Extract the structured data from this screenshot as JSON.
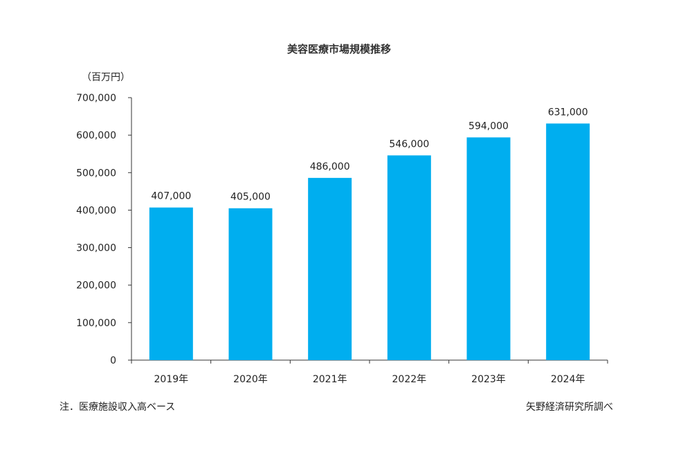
{
  "chart_data": {
    "type": "bar",
    "title": "美容医療市場規模推移",
    "ylabel": "（百万円）",
    "xlabel": "",
    "categories": [
      "2019年",
      "2020年",
      "2021年",
      "2022年",
      "2023年",
      "2024年"
    ],
    "values": [
      407000,
      405000,
      486000,
      546000,
      594000,
      631000
    ],
    "data_labels": [
      "407,000",
      "405,000",
      "486,000",
      "546,000",
      "594,000",
      "631,000"
    ],
    "ylim": [
      0,
      700000
    ],
    "yticks": [
      0,
      100000,
      200000,
      300000,
      400000,
      500000,
      600000,
      700000
    ],
    "ytick_labels": [
      "0",
      "100,000",
      "200,000",
      "300,000",
      "400,000",
      "500,000",
      "600,000",
      "700,000"
    ],
    "grid": false,
    "bar_color": "#00aeef",
    "note": "注．医療施設収入高ベース",
    "source": "矢野経済研究所調べ"
  }
}
